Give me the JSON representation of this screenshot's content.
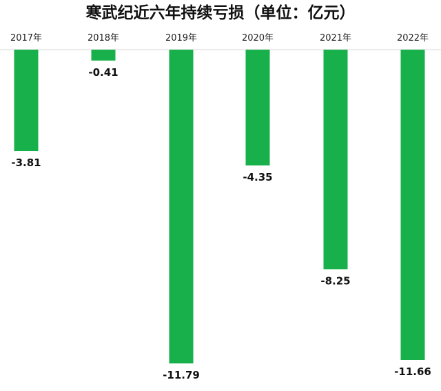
{
  "chart_data": {
    "type": "bar",
    "title": "寒武纪近六年持续亏损（单位：亿元）",
    "categories": [
      "2017年",
      "2018年",
      "2019年",
      "2020年",
      "2021年",
      "2022年"
    ],
    "values": [
      -3.81,
      -0.41,
      -11.79,
      -4.35,
      -8.25,
      -11.66
    ],
    "data_labels": [
      "-3.81",
      "-0.41",
      "-11.79",
      "-4.35",
      "-8.25",
      "-11.66"
    ],
    "xlabel": "",
    "ylabel": "",
    "ylim": [
      -11.79,
      0
    ],
    "x_axis_position": "top",
    "grid": false,
    "legend": "none",
    "colors": {
      "bar": "#17b04a",
      "axis": "#d9d9d9",
      "text": "#111111"
    }
  }
}
